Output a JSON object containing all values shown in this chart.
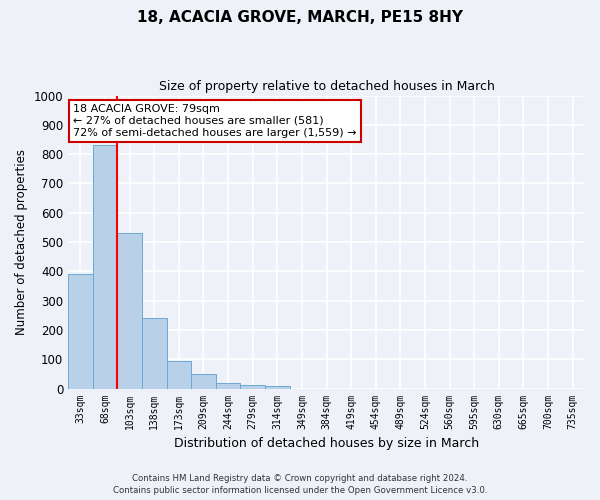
{
  "title": "18, ACACIA GROVE, MARCH, PE15 8HY",
  "subtitle": "Size of property relative to detached houses in March",
  "xlabel": "Distribution of detached houses by size in March",
  "ylabel": "Number of detached properties",
  "bar_labels": [
    "33sqm",
    "68sqm",
    "103sqm",
    "138sqm",
    "173sqm",
    "209sqm",
    "244sqm",
    "279sqm",
    "314sqm",
    "349sqm",
    "384sqm",
    "419sqm",
    "454sqm",
    "489sqm",
    "524sqm",
    "560sqm",
    "595sqm",
    "630sqm",
    "665sqm",
    "700sqm",
    "735sqm"
  ],
  "bar_values": [
    390,
    830,
    530,
    240,
    95,
    50,
    20,
    12,
    8,
    0,
    0,
    0,
    0,
    0,
    0,
    0,
    0,
    0,
    0,
    0,
    0
  ],
  "bar_color": "#b8d0e8",
  "bar_edgecolor": "#6aaad4",
  "red_line_x": 1.5,
  "annotation_title": "18 ACACIA GROVE: 79sqm",
  "annotation_line1": "← 27% of detached houses are smaller (581)",
  "annotation_line2": "72% of semi-detached houses are larger (1,559) →",
  "annotation_box_facecolor": "#ffffff",
  "annotation_box_edgecolor": "#cc0000",
  "ylim": [
    0,
    1000
  ],
  "yticks": [
    0,
    100,
    200,
    300,
    400,
    500,
    600,
    700,
    800,
    900,
    1000
  ],
  "footer_line1": "Contains HM Land Registry data © Crown copyright and database right 2024.",
  "footer_line2": "Contains public sector information licensed under the Open Government Licence v3.0.",
  "bg_color": "#eef2f8",
  "grid_color": "#ffffff"
}
